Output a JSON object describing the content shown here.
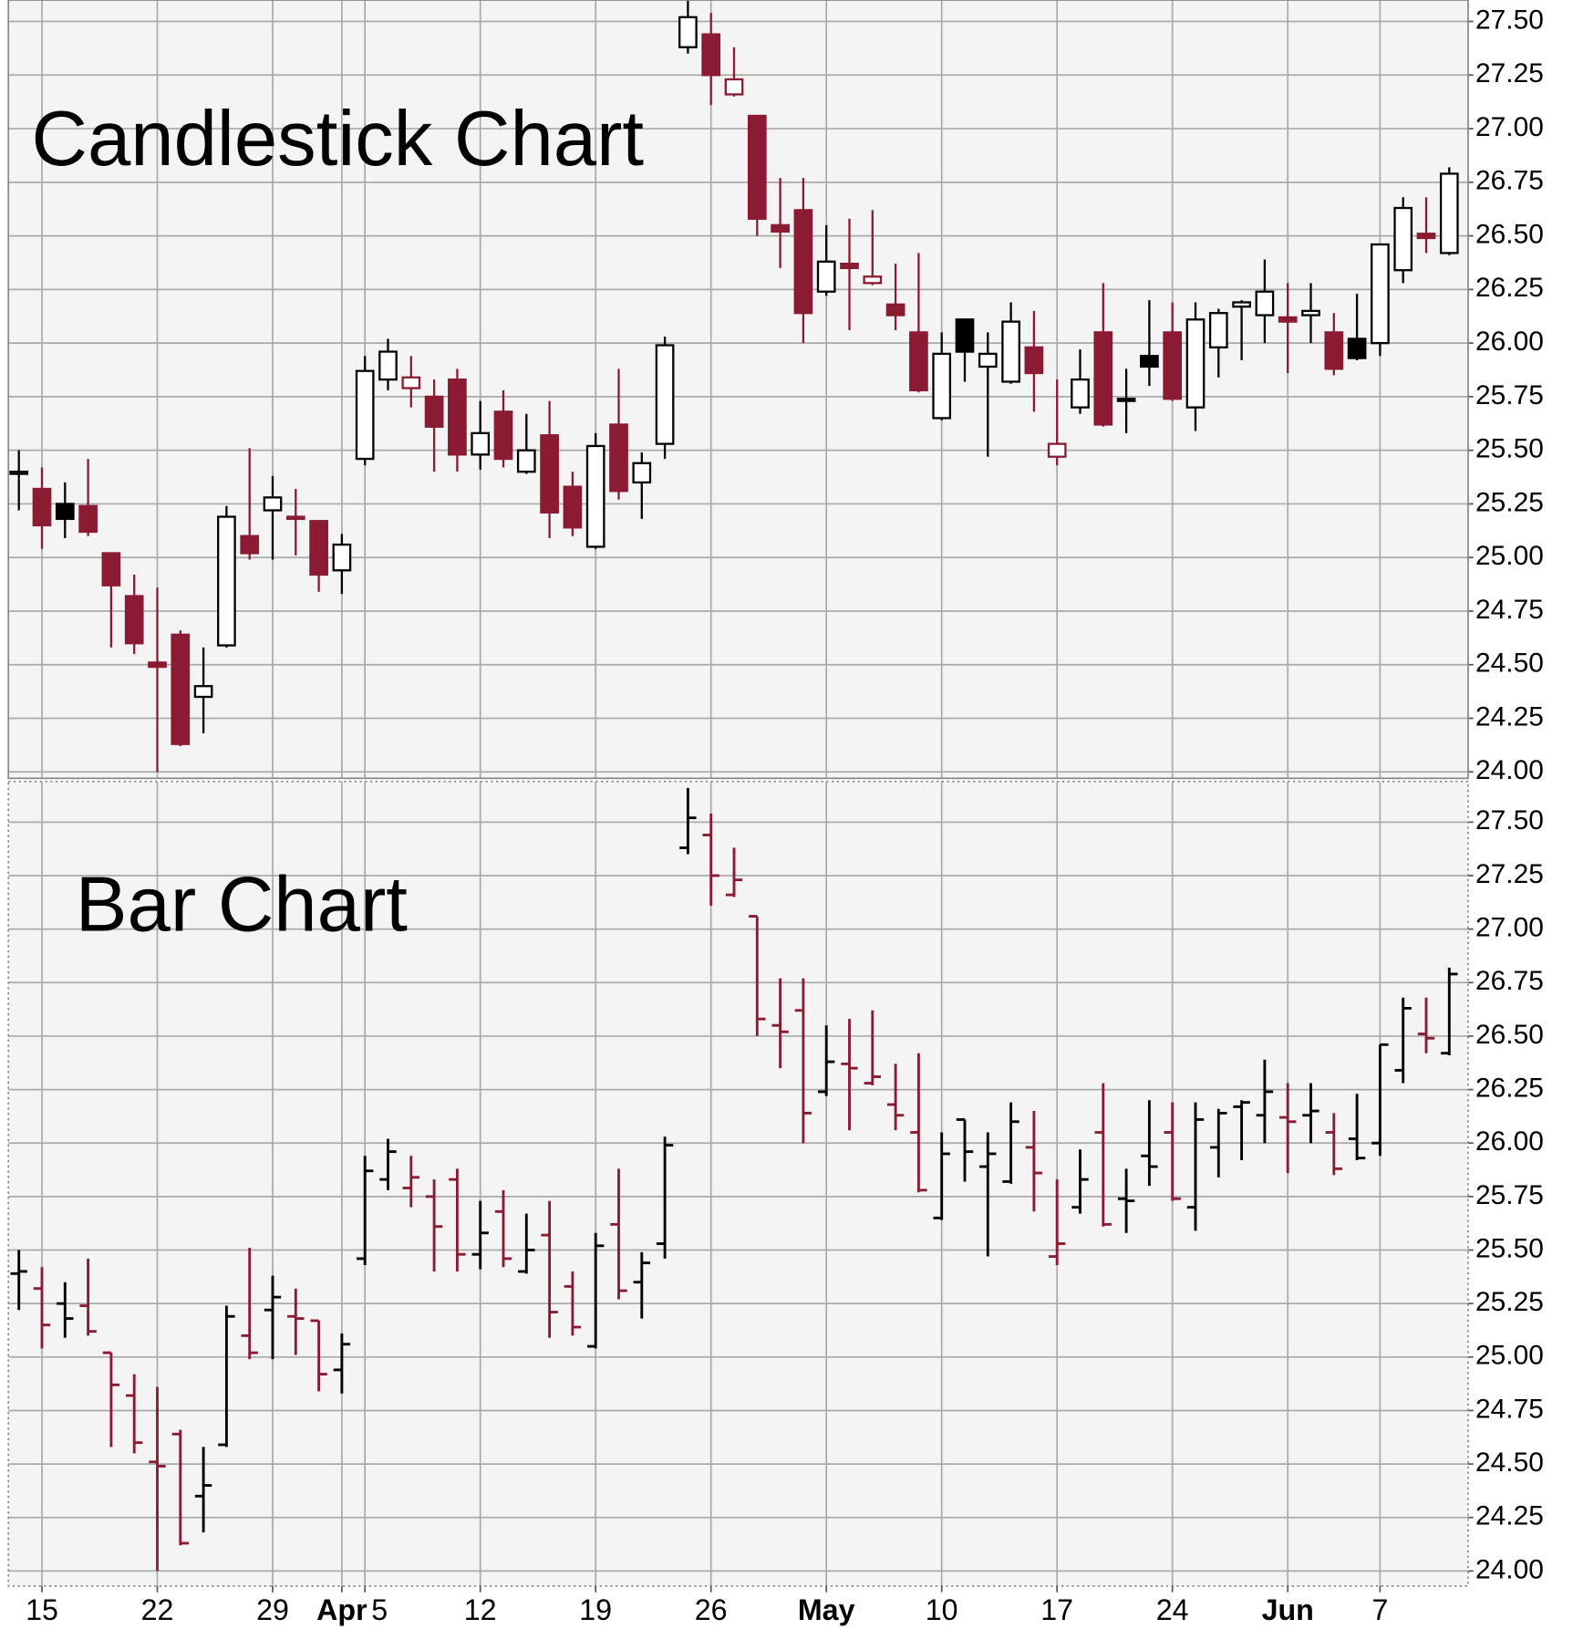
{
  "chart_data": [
    {
      "type": "candlestick",
      "title": "Candlestick Chart",
      "open": [
        25.39,
        25.32,
        25.25,
        25.24,
        25.02,
        24.82,
        24.51,
        24.64,
        24.35,
        24.59,
        25.1,
        25.22,
        25.19,
        25.17,
        24.94,
        25.46,
        25.83,
        25.79,
        25.75,
        25.83,
        25.48,
        25.68,
        25.4,
        25.57,
        25.33,
        25.05,
        25.62,
        25.35,
        25.53,
        27.38,
        27.44,
        27.16,
        27.06,
        26.55,
        26.62,
        26.24,
        26.37,
        26.28,
        26.18,
        26.05,
        25.65,
        26.11,
        25.89,
        25.82,
        25.98,
        25.47,
        25.7,
        26.05,
        25.74,
        25.94,
        26.05,
        25.7,
        25.98,
        26.17,
        26.13,
        26.12,
        26.13,
        26.05,
        26.02,
        26.0,
        26.34,
        26.51,
        26.42
      ],
      "high": [
        25.5,
        25.42,
        25.35,
        25.46,
        25.02,
        24.92,
        24.86,
        24.66,
        24.58,
        25.24,
        25.51,
        25.38,
        25.32,
        25.17,
        25.11,
        25.94,
        26.02,
        25.94,
        25.83,
        25.88,
        25.73,
        25.78,
        25.67,
        25.73,
        25.4,
        25.58,
        25.88,
        25.49,
        26.03,
        27.66,
        27.54,
        27.38,
        27.06,
        26.77,
        26.77,
        26.55,
        26.58,
        26.62,
        26.37,
        26.42,
        26.05,
        26.11,
        26.05,
        26.19,
        26.15,
        25.83,
        25.97,
        26.28,
        25.88,
        26.2,
        26.19,
        26.19,
        26.16,
        26.2,
        26.39,
        26.28,
        26.28,
        26.14,
        26.23,
        26.46,
        26.68,
        26.68,
        26.82
      ],
      "low": [
        25.22,
        25.04,
        25.09,
        25.1,
        24.58,
        24.55,
        24.0,
        24.12,
        24.18,
        24.58,
        24.99,
        24.99,
        25.01,
        24.84,
        24.83,
        25.43,
        25.78,
        25.7,
        25.4,
        25.4,
        25.41,
        25.42,
        25.39,
        25.09,
        25.1,
        25.04,
        25.27,
        25.18,
        25.46,
        27.35,
        27.11,
        27.15,
        26.5,
        26.35,
        26.0,
        26.22,
        26.06,
        26.27,
        26.06,
        25.77,
        25.64,
        25.82,
        25.47,
        25.81,
        25.68,
        25.43,
        25.67,
        25.61,
        25.58,
        25.8,
        25.73,
        25.59,
        25.84,
        25.92,
        26.0,
        25.86,
        26.0,
        25.85,
        25.92,
        25.94,
        26.28,
        26.42,
        26.41
      ],
      "close": [
        25.4,
        25.15,
        25.18,
        25.12,
        24.87,
        24.6,
        24.49,
        24.13,
        24.4,
        25.19,
        25.02,
        25.28,
        25.18,
        24.92,
        25.06,
        25.87,
        25.96,
        25.84,
        25.61,
        25.48,
        25.58,
        25.46,
        25.5,
        25.21,
        25.14,
        25.52,
        25.31,
        25.44,
        25.99,
        27.52,
        27.25,
        27.23,
        26.58,
        26.52,
        26.14,
        26.38,
        26.35,
        26.31,
        26.13,
        25.78,
        25.95,
        25.96,
        25.95,
        26.1,
        25.86,
        25.53,
        25.83,
        25.62,
        25.73,
        25.89,
        25.74,
        26.11,
        26.14,
        26.19,
        26.24,
        26.1,
        26.15,
        25.88,
        25.93,
        26.46,
        26.63,
        26.49,
        26.79
      ],
      "colors": [
        "#000000",
        "#8b1a33",
        "#000000",
        "#8b1a33",
        "#8b1a33",
        "#8b1a33",
        "#8b1a33",
        "#8b1a33",
        "#000000",
        "#000000",
        "#8b1a33",
        "#000000",
        "#8b1a33",
        "#8b1a33",
        "#000000",
        "#000000",
        "#000000",
        "#8b1a33",
        "#8b1a33",
        "#8b1a33",
        "#000000",
        "#8b1a33",
        "#000000",
        "#8b1a33",
        "#8b1a33",
        "#000000",
        "#8b1a33",
        "#000000",
        "#000000",
        "#000000",
        "#8b1a33",
        "#8b1a33",
        "#8b1a33",
        "#8b1a33",
        "#8b1a33",
        "#000000",
        "#8b1a33",
        "#8b1a33",
        "#8b1a33",
        "#8b1a33",
        "#000000",
        "#000000",
        "#000000",
        "#000000",
        "#8b1a33",
        "#8b1a33",
        "#000000",
        "#8b1a33",
        "#000000",
        "#000000",
        "#8b1a33",
        "#000000",
        "#000000",
        "#000000",
        "#000000",
        "#8b1a33",
        "#000000",
        "#8b1a33",
        "#000000",
        "#000000",
        "#000000",
        "#8b1a33",
        "#000000"
      ],
      "ylim": [
        23.97,
        27.6
      ],
      "yticks": [
        {
          "value": 24,
          "label": "24.00"
        },
        24.25,
        {
          "value": 24.5,
          "label": "24.50"
        },
        24.75,
        {
          "value": 25,
          "label": "25.00"
        },
        25.25,
        {
          "value": 25.5,
          "label": "25.50"
        },
        25.75,
        {
          "value": 26,
          "label": "26.00"
        },
        26.25,
        {
          "value": 26.5,
          "label": "26.50"
        },
        26.75,
        {
          "value": 27,
          "label": "27.00"
        },
        27.25,
        {
          "value": 27.5,
          "label": "27.50"
        }
      ],
      "grid": true
    },
    {
      "type": "ohlc",
      "title": "Bar Chart",
      "categories": [
        null,
        "15",
        null,
        null,
        null,
        null,
        "22",
        null,
        null,
        null,
        null,
        "29",
        null,
        null,
        "Apr",
        "5",
        null,
        null,
        null,
        null,
        "12",
        null,
        null,
        null,
        null,
        "19",
        null,
        null,
        null,
        null,
        "26",
        null,
        null,
        null,
        null,
        "May",
        null,
        null,
        null,
        null,
        "10",
        null,
        null,
        null,
        null,
        "17",
        null,
        null,
        null,
        null,
        "24",
        null,
        null,
        null,
        null,
        "Jun",
        null,
        null,
        null,
        "7",
        null,
        null,
        null
      ],
      "open": [
        25.39,
        25.32,
        25.25,
        25.24,
        25.02,
        24.82,
        24.51,
        24.64,
        24.35,
        24.59,
        25.1,
        25.22,
        25.19,
        25.17,
        24.94,
        25.46,
        25.83,
        25.79,
        25.75,
        25.83,
        25.48,
        25.68,
        25.4,
        25.57,
        25.33,
        25.05,
        25.62,
        25.35,
        25.53,
        27.38,
        27.44,
        27.16,
        27.06,
        26.55,
        26.62,
        26.24,
        26.37,
        26.28,
        26.18,
        26.05,
        25.65,
        26.11,
        25.89,
        25.82,
        25.98,
        25.47,
        25.7,
        26.05,
        25.74,
        25.94,
        26.05,
        25.7,
        25.98,
        26.17,
        26.13,
        26.12,
        26.13,
        26.05,
        26.02,
        26.0,
        26.34,
        26.51,
        26.42
      ],
      "high": [
        25.5,
        25.42,
        25.35,
        25.46,
        25.02,
        24.92,
        24.86,
        24.66,
        24.58,
        25.24,
        25.51,
        25.38,
        25.32,
        25.17,
        25.11,
        25.94,
        26.02,
        25.94,
        25.83,
        25.88,
        25.73,
        25.78,
        25.67,
        25.73,
        25.4,
        25.58,
        25.88,
        25.49,
        26.03,
        27.66,
        27.54,
        27.38,
        27.06,
        26.77,
        26.77,
        26.55,
        26.58,
        26.62,
        26.37,
        26.42,
        26.05,
        26.11,
        26.05,
        26.19,
        26.15,
        25.83,
        25.97,
        26.28,
        25.88,
        26.2,
        26.19,
        26.19,
        26.16,
        26.2,
        26.39,
        26.28,
        26.28,
        26.14,
        26.23,
        26.46,
        26.68,
        26.68,
        26.82
      ],
      "low": [
        25.22,
        25.04,
        25.09,
        25.1,
        24.58,
        24.55,
        24.0,
        24.12,
        24.18,
        24.58,
        24.99,
        24.99,
        25.01,
        24.84,
        24.83,
        25.43,
        25.78,
        25.7,
        25.4,
        25.4,
        25.41,
        25.42,
        25.39,
        25.09,
        25.1,
        25.04,
        25.27,
        25.18,
        25.46,
        27.35,
        27.11,
        27.15,
        26.5,
        26.35,
        26.0,
        26.22,
        26.06,
        26.27,
        26.06,
        25.77,
        25.64,
        25.82,
        25.47,
        25.81,
        25.68,
        25.43,
        25.67,
        25.61,
        25.58,
        25.8,
        25.73,
        25.59,
        25.84,
        25.92,
        26.0,
        25.86,
        26.0,
        25.85,
        25.92,
        25.94,
        26.28,
        26.42,
        26.41
      ],
      "close": [
        25.4,
        25.15,
        25.18,
        25.12,
        24.87,
        24.6,
        24.49,
        24.13,
        24.4,
        25.19,
        25.02,
        25.28,
        25.18,
        24.92,
        25.06,
        25.87,
        25.96,
        25.84,
        25.61,
        25.48,
        25.58,
        25.46,
        25.5,
        25.21,
        25.14,
        25.52,
        25.31,
        25.44,
        25.99,
        27.52,
        27.25,
        27.23,
        26.58,
        26.52,
        26.14,
        26.38,
        26.35,
        26.31,
        26.13,
        25.78,
        25.95,
        25.96,
        25.95,
        26.1,
        25.86,
        25.53,
        25.83,
        25.62,
        25.73,
        25.89,
        25.74,
        26.11,
        26.14,
        26.19,
        26.24,
        26.1,
        26.15,
        25.88,
        25.93,
        26.46,
        26.63,
        26.49,
        26.79
      ],
      "colors": [
        "#000000",
        "#8b1a33",
        "#000000",
        "#8b1a33",
        "#8b1a33",
        "#8b1a33",
        "#8b1a33",
        "#8b1a33",
        "#000000",
        "#000000",
        "#8b1a33",
        "#000000",
        "#8b1a33",
        "#8b1a33",
        "#000000",
        "#000000",
        "#000000",
        "#8b1a33",
        "#8b1a33",
        "#8b1a33",
        "#000000",
        "#8b1a33",
        "#000000",
        "#8b1a33",
        "#8b1a33",
        "#000000",
        "#8b1a33",
        "#000000",
        "#000000",
        "#000000",
        "#8b1a33",
        "#8b1a33",
        "#8b1a33",
        "#8b1a33",
        "#8b1a33",
        "#000000",
        "#8b1a33",
        "#8b1a33",
        "#8b1a33",
        "#8b1a33",
        "#000000",
        "#000000",
        "#000000",
        "#000000",
        "#8b1a33",
        "#8b1a33",
        "#000000",
        "#8b1a33",
        "#000000",
        "#000000",
        "#8b1a33",
        "#000000",
        "#000000",
        "#000000",
        "#000000",
        "#8b1a33",
        "#000000",
        "#8b1a33",
        "#000000",
        "#000000",
        "#000000",
        "#8b1a33",
        "#000000"
      ],
      "ylim": [
        23.93,
        27.69
      ],
      "yticks": [
        {
          "value": 24,
          "label": "24.00"
        },
        24.25,
        {
          "value": 24.5,
          "label": "24.50"
        },
        24.75,
        {
          "value": 25,
          "label": "25.00"
        },
        25.25,
        {
          "value": 25.5,
          "label": "25.50"
        },
        25.75,
        {
          "value": 26,
          "label": "26.00"
        },
        26.25,
        {
          "value": 26.5,
          "label": "26.50"
        },
        26.75,
        {
          "value": 27,
          "label": "27.00"
        },
        27.25,
        {
          "value": 27.5,
          "label": "27.50"
        }
      ],
      "grid": true
    }
  ]
}
